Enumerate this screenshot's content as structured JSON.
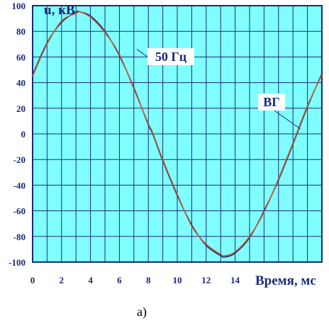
{
  "chart_data": {
    "type": "line",
    "ylabel": "u, кВ",
    "xlabel": "Время, мс",
    "xlim": [
      0,
      20
    ],
    "ylim": [
      -100,
      100
    ],
    "x_ticks": [
      0,
      2,
      4,
      6,
      8,
      10,
      12,
      14
    ],
    "y_ticks": [
      100,
      80,
      60,
      40,
      20,
      0,
      -20,
      -40,
      -60,
      -80,
      -100
    ],
    "grid": true,
    "series": [
      {
        "name": "50 Гц",
        "color": "#1a2a7a",
        "x": [
          0,
          1,
          2,
          3,
          3.3,
          4,
          5,
          6,
          7,
          8,
          8.3,
          9,
          10,
          11,
          12,
          13,
          13.3,
          14,
          15,
          16,
          17,
          18,
          19,
          20
        ],
        "y": [
          46,
          71,
          87,
          95,
          95,
          92,
          80,
          61,
          36,
          7,
          0,
          -21,
          -48,
          -71,
          -87,
          -95,
          -96,
          -93,
          -81,
          -60,
          -36,
          -8,
          21,
          47
        ]
      },
      {
        "name": "ВГ",
        "color": "#c06030",
        "x": [
          0,
          1,
          2,
          3,
          3.3,
          4,
          5,
          6,
          7,
          8,
          8.3,
          9,
          10,
          11,
          12,
          13,
          13.3,
          14,
          15,
          16,
          17,
          18,
          19,
          20
        ],
        "y": [
          45,
          70,
          88,
          94,
          95,
          91,
          79,
          62,
          35,
          8,
          1,
          -20,
          -47,
          -72,
          -86,
          -94,
          -95,
          -92,
          -80,
          -61,
          -35,
          -7,
          22,
          46
        ]
      }
    ],
    "annotations": [
      {
        "text": "50 Гц",
        "series": "50 Гц",
        "point": [
          7.2,
          66
        ]
      },
      {
        "text": "ВГ",
        "series": "ВГ",
        "point": [
          18.5,
          4
        ]
      }
    ],
    "caption": "а)",
    "colors": {
      "plot_background": "#80ffff",
      "grid": "#1a2a7a",
      "axes": "#1a2a7a"
    }
  }
}
